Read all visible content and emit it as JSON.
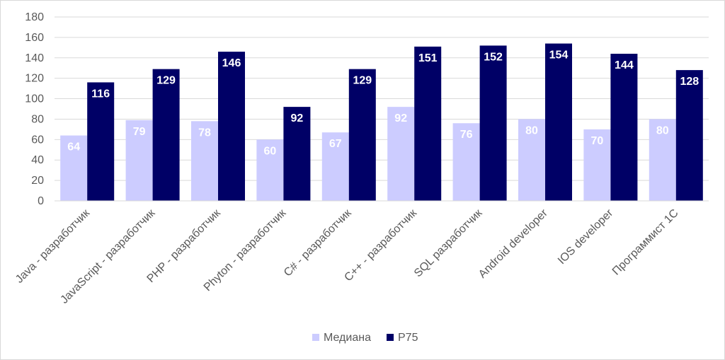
{
  "chart_data": {
    "type": "bar",
    "categories": [
      "Java - разработчик",
      "JavaScript - разработчик",
      "PHP - разработчик",
      "Phyton - разработчик",
      "C# - разработчик",
      "C++ - разработчик",
      "SQL разработчик",
      "Android developer",
      "IOS  developer",
      "Программист 1С"
    ],
    "series": [
      {
        "name": "Медиана",
        "color": "#ccccff",
        "values": [
          64,
          79,
          78,
          60,
          67,
          92,
          76,
          80,
          70,
          80
        ]
      },
      {
        "name": "P75",
        "color": "#000066",
        "values": [
          116,
          129,
          146,
          92,
          129,
          151,
          152,
          154,
          144,
          128
        ]
      }
    ],
    "ylim": [
      0,
      180
    ],
    "yticks": [
      "0",
      "20",
      "40",
      "60",
      "80",
      "100",
      "120",
      "140",
      "160",
      "180"
    ],
    "grid": true,
    "legend_position": "bottom",
    "title": "",
    "xlabel": "",
    "ylabel": ""
  }
}
